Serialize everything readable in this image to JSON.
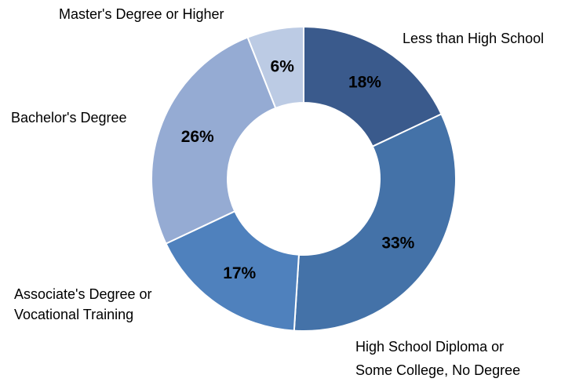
{
  "chart_data": {
    "type": "pie",
    "variant": "donut",
    "title": "",
    "categories": [
      "Less than High School",
      "High School Diploma or Some College, No Degree",
      "Associate's Degree or Vocational Training",
      "Bachelor's Degree",
      "Master's Degree or Higher"
    ],
    "values": [
      18,
      33,
      17,
      26,
      6
    ],
    "value_labels": [
      "18%",
      "33%",
      "17%",
      "26%",
      "6%"
    ],
    "label_lines": [
      [
        "Less than High School"
      ],
      [
        "High School Diploma or",
        "Some College, No Degree"
      ],
      [
        "Associate's Degree or",
        "Vocational Training"
      ],
      [
        "Bachelor's Degree"
      ],
      [
        "Master's Degree or Higher"
      ]
    ],
    "colors": [
      "#3a5a8c",
      "#4472a8",
      "#4f81bd",
      "#95abd3",
      "#bccbe4"
    ],
    "legend": "none",
    "label_position": "outside"
  }
}
